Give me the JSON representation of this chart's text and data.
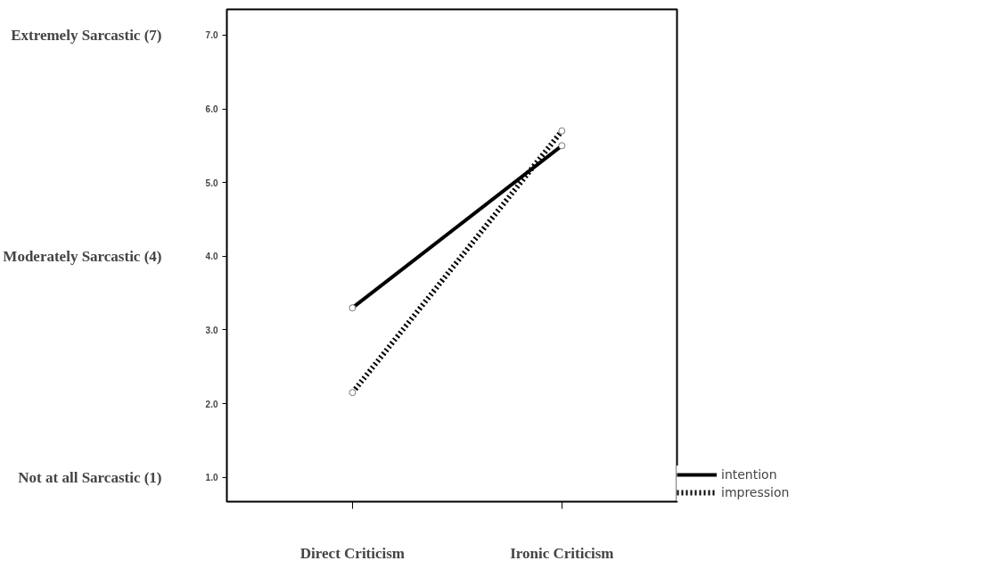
{
  "chart_data": {
    "type": "line",
    "categories": [
      "Direct Criticism",
      "Ironic Criticism"
    ],
    "series": [
      {
        "name": "intention",
        "color": "#000000",
        "values": [
          3.3,
          5.5
        ],
        "line_style": "solid"
      },
      {
        "name": "impression",
        "color": "#000000",
        "values": [
          2.15,
          5.7
        ],
        "line_style": "dotted"
      }
    ],
    "ylim": [
      0.67,
      7.35
    ],
    "yticks": [
      {
        "value": 1,
        "label": "1.0"
      },
      {
        "value": 2,
        "label": "2.0"
      },
      {
        "value": 3,
        "label": "3.0"
      },
      {
        "value": 4,
        "label": "4.0"
      },
      {
        "value": 5,
        "label": "5.0"
      },
      {
        "value": 6,
        "label": "6.0"
      },
      {
        "value": 7,
        "label": "7.0"
      }
    ],
    "annotations": [
      "Extremely Sarcastic (7)",
      "Moderately Sarcastic (4)",
      "Not at all Sarcastic (1)"
    ],
    "marker": "circle",
    "grid": false,
    "legend": "bottom right"
  }
}
